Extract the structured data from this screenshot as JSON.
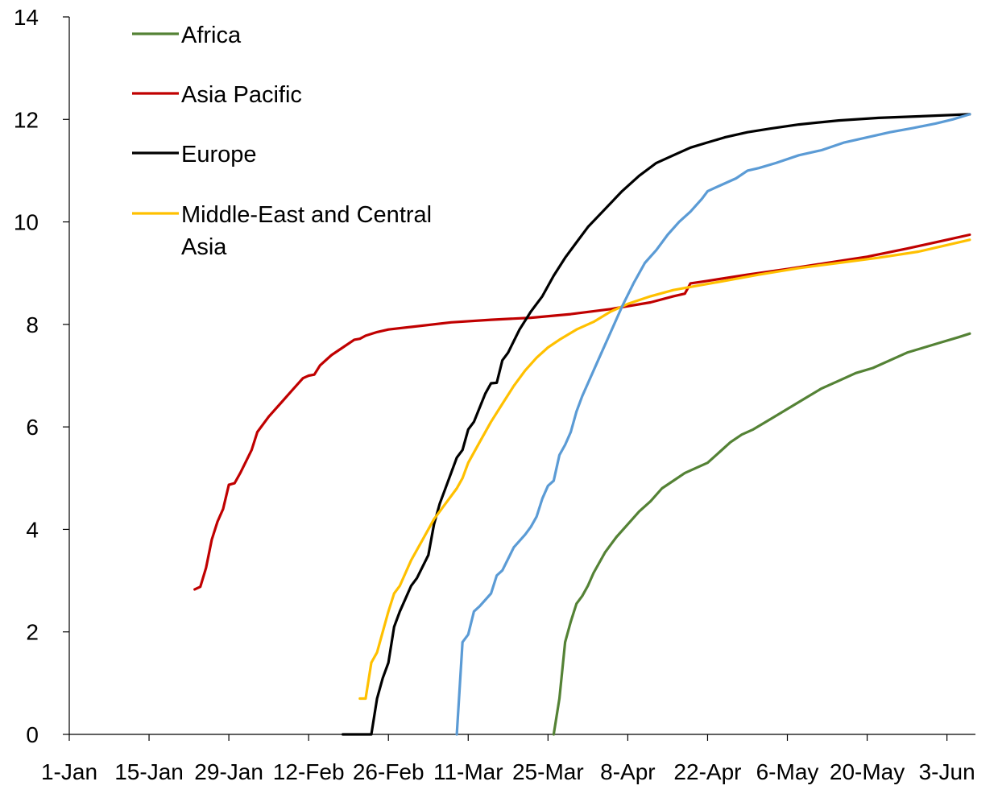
{
  "chart_data": {
    "type": "line",
    "title": "",
    "xlabel": "",
    "ylabel": "",
    "x_ticks": [
      "1-Jan",
      "15-Jan",
      "29-Jan",
      "12-Feb",
      "26-Feb",
      "11-Mar",
      "25-Mar",
      "8-Apr",
      "22-Apr",
      "6-May",
      "20-May",
      "3-Jun"
    ],
    "x_tick_dates": [
      "2020-01-01",
      "2020-01-15",
      "2020-01-29",
      "2020-02-12",
      "2020-02-26",
      "2020-03-11",
      "2020-03-25",
      "2020-04-08",
      "2020-04-22",
      "2020-05-06",
      "2020-05-20",
      "2020-06-03"
    ],
    "xlim": [
      "2020-01-01",
      "2020-06-08"
    ],
    "ylim": [
      0,
      14
    ],
    "y_ticks": [
      0,
      2,
      4,
      6,
      8,
      10,
      12,
      14
    ],
    "grid": false,
    "legend_position": "top-left",
    "series": [
      {
        "name": "Africa",
        "color": "#548235",
        "points": [
          [
            "2020-03-26",
            0
          ],
          [
            "2020-03-27",
            0.7
          ],
          [
            "2020-03-28",
            1.8
          ],
          [
            "2020-03-29",
            2.2
          ],
          [
            "2020-03-30",
            2.55
          ],
          [
            "2020-03-31",
            2.7
          ],
          [
            "2020-04-01",
            2.9
          ],
          [
            "2020-04-02",
            3.15
          ],
          [
            "2020-04-04",
            3.55
          ],
          [
            "2020-04-06",
            3.85
          ],
          [
            "2020-04-08",
            4.1
          ],
          [
            "2020-04-10",
            4.35
          ],
          [
            "2020-04-12",
            4.55
          ],
          [
            "2020-04-14",
            4.8
          ],
          [
            "2020-04-16",
            4.95
          ],
          [
            "2020-04-18",
            5.1
          ],
          [
            "2020-04-20",
            5.2
          ],
          [
            "2020-04-22",
            5.3
          ],
          [
            "2020-04-24",
            5.5
          ],
          [
            "2020-04-26",
            5.7
          ],
          [
            "2020-04-28",
            5.85
          ],
          [
            "2020-04-30",
            5.95
          ],
          [
            "2020-05-03",
            6.15
          ],
          [
            "2020-05-06",
            6.35
          ],
          [
            "2020-05-09",
            6.55
          ],
          [
            "2020-05-12",
            6.75
          ],
          [
            "2020-05-15",
            6.9
          ],
          [
            "2020-05-18",
            7.05
          ],
          [
            "2020-05-21",
            7.15
          ],
          [
            "2020-05-24",
            7.3
          ],
          [
            "2020-05-27",
            7.45
          ],
          [
            "2020-05-30",
            7.55
          ],
          [
            "2020-06-02",
            7.65
          ],
          [
            "2020-06-05",
            7.75
          ],
          [
            "2020-06-07",
            7.82
          ]
        ]
      },
      {
        "name": "Asia Pacific",
        "color": "#C00000",
        "points": [
          [
            "2020-01-23",
            2.83
          ],
          [
            "2020-01-24",
            2.88
          ],
          [
            "2020-01-25",
            3.25
          ],
          [
            "2020-01-26",
            3.8
          ],
          [
            "2020-01-27",
            4.15
          ],
          [
            "2020-01-28",
            4.4
          ],
          [
            "2020-01-29",
            4.87
          ],
          [
            "2020-01-30",
            4.9
          ],
          [
            "2020-01-31",
            5.1
          ],
          [
            "2020-02-02",
            5.55
          ],
          [
            "2020-02-03",
            5.9
          ],
          [
            "2020-02-05",
            6.2
          ],
          [
            "2020-02-07",
            6.45
          ],
          [
            "2020-02-09",
            6.7
          ],
          [
            "2020-02-11",
            6.95
          ],
          [
            "2020-02-12",
            7.0
          ],
          [
            "2020-02-13",
            7.02
          ],
          [
            "2020-02-14",
            7.2
          ],
          [
            "2020-02-16",
            7.4
          ],
          [
            "2020-02-18",
            7.55
          ],
          [
            "2020-02-20",
            7.7
          ],
          [
            "2020-02-21",
            7.72
          ],
          [
            "2020-02-22",
            7.78
          ],
          [
            "2020-02-24",
            7.85
          ],
          [
            "2020-02-26",
            7.9
          ],
          [
            "2020-03-01",
            7.95
          ],
          [
            "2020-03-08",
            8.04
          ],
          [
            "2020-03-15",
            8.09
          ],
          [
            "2020-03-22",
            8.13
          ],
          [
            "2020-03-29",
            8.2
          ],
          [
            "2020-04-05",
            8.3
          ],
          [
            "2020-04-12",
            8.43
          ],
          [
            "2020-04-16",
            8.55
          ],
          [
            "2020-04-18",
            8.6
          ],
          [
            "2020-04-19",
            8.8
          ],
          [
            "2020-04-22",
            8.85
          ],
          [
            "2020-04-29",
            8.97
          ],
          [
            "2020-05-06",
            9.08
          ],
          [
            "2020-05-13",
            9.2
          ],
          [
            "2020-05-20",
            9.32
          ],
          [
            "2020-05-27",
            9.48
          ],
          [
            "2020-06-03",
            9.65
          ],
          [
            "2020-06-07",
            9.75
          ]
        ]
      },
      {
        "name": "Europe",
        "color": "#000000",
        "points": [
          [
            "2020-02-18",
            0
          ],
          [
            "2020-02-23",
            0
          ],
          [
            "2020-02-24",
            0.7
          ],
          [
            "2020-02-25",
            1.1
          ],
          [
            "2020-02-26",
            1.4
          ],
          [
            "2020-02-27",
            2.1
          ],
          [
            "2020-02-28",
            2.4
          ],
          [
            "2020-03-01",
            2.9
          ],
          [
            "2020-03-02",
            3.05
          ],
          [
            "2020-03-04",
            3.5
          ],
          [
            "2020-03-05",
            4.1
          ],
          [
            "2020-03-06",
            4.5
          ],
          [
            "2020-03-07",
            4.8
          ],
          [
            "2020-03-09",
            5.4
          ],
          [
            "2020-03-10",
            5.55
          ],
          [
            "2020-03-11",
            5.95
          ],
          [
            "2020-03-12",
            6.1
          ],
          [
            "2020-03-14",
            6.65
          ],
          [
            "2020-03-15",
            6.85
          ],
          [
            "2020-03-16",
            6.86
          ],
          [
            "2020-03-17",
            7.3
          ],
          [
            "2020-03-18",
            7.45
          ],
          [
            "2020-03-20",
            7.9
          ],
          [
            "2020-03-22",
            8.25
          ],
          [
            "2020-03-24",
            8.55
          ],
          [
            "2020-03-26",
            8.95
          ],
          [
            "2020-03-28",
            9.3
          ],
          [
            "2020-03-30",
            9.6
          ],
          [
            "2020-04-01",
            9.9
          ],
          [
            "2020-04-04",
            10.25
          ],
          [
            "2020-04-07",
            10.6
          ],
          [
            "2020-04-10",
            10.9
          ],
          [
            "2020-04-13",
            11.15
          ],
          [
            "2020-04-16",
            11.3
          ],
          [
            "2020-04-19",
            11.45
          ],
          [
            "2020-04-22",
            11.55
          ],
          [
            "2020-04-25",
            11.65
          ],
          [
            "2020-04-29",
            11.75
          ],
          [
            "2020-05-03",
            11.82
          ],
          [
            "2020-05-08",
            11.9
          ],
          [
            "2020-05-15",
            11.98
          ],
          [
            "2020-05-22",
            12.03
          ],
          [
            "2020-05-29",
            12.06
          ],
          [
            "2020-06-07",
            12.1
          ]
        ]
      },
      {
        "name": "Middle-East and Central Asia",
        "color": "#FFC000",
        "points": [
          [
            "2020-02-21",
            0.7
          ],
          [
            "2020-02-22",
            0.7
          ],
          [
            "2020-02-23",
            1.4
          ],
          [
            "2020-02-24",
            1.6
          ],
          [
            "2020-02-26",
            2.4
          ],
          [
            "2020-02-27",
            2.75
          ],
          [
            "2020-02-28",
            2.9
          ],
          [
            "2020-03-01",
            3.4
          ],
          [
            "2020-03-03",
            3.8
          ],
          [
            "2020-03-05",
            4.2
          ],
          [
            "2020-03-07",
            4.5
          ],
          [
            "2020-03-09",
            4.8
          ],
          [
            "2020-03-10",
            5.0
          ],
          [
            "2020-03-11",
            5.3
          ],
          [
            "2020-03-13",
            5.7
          ],
          [
            "2020-03-15",
            6.1
          ],
          [
            "2020-03-17",
            6.45
          ],
          [
            "2020-03-19",
            6.8
          ],
          [
            "2020-03-21",
            7.1
          ],
          [
            "2020-03-23",
            7.35
          ],
          [
            "2020-03-25",
            7.55
          ],
          [
            "2020-03-27",
            7.7
          ],
          [
            "2020-03-30",
            7.9
          ],
          [
            "2020-04-02",
            8.05
          ],
          [
            "2020-04-05",
            8.25
          ],
          [
            "2020-04-08",
            8.4
          ],
          [
            "2020-04-12",
            8.55
          ],
          [
            "2020-04-16",
            8.67
          ],
          [
            "2020-04-20",
            8.75
          ],
          [
            "2020-04-25",
            8.85
          ],
          [
            "2020-05-01",
            8.97
          ],
          [
            "2020-05-08",
            9.1
          ],
          [
            "2020-05-15",
            9.2
          ],
          [
            "2020-05-22",
            9.3
          ],
          [
            "2020-05-29",
            9.42
          ],
          [
            "2020-06-07",
            9.65
          ]
        ]
      },
      {
        "name": "",
        "color": "#5B9BD5",
        "points": [
          [
            "2020-03-09",
            0
          ],
          [
            "2020-03-10",
            1.8
          ],
          [
            "2020-03-11",
            1.95
          ],
          [
            "2020-03-12",
            2.4
          ],
          [
            "2020-03-13",
            2.5
          ],
          [
            "2020-03-15",
            2.75
          ],
          [
            "2020-03-16",
            3.1
          ],
          [
            "2020-03-17",
            3.2
          ],
          [
            "2020-03-19",
            3.65
          ],
          [
            "2020-03-21",
            3.9
          ],
          [
            "2020-03-22",
            4.05
          ],
          [
            "2020-03-23",
            4.25
          ],
          [
            "2020-03-24",
            4.6
          ],
          [
            "2020-03-25",
            4.85
          ],
          [
            "2020-03-26",
            4.95
          ],
          [
            "2020-03-27",
            5.45
          ],
          [
            "2020-03-28",
            5.65
          ],
          [
            "2020-03-29",
            5.9
          ],
          [
            "2020-03-30",
            6.3
          ],
          [
            "2020-03-31",
            6.6
          ],
          [
            "2020-04-01",
            6.85
          ],
          [
            "2020-04-03",
            7.35
          ],
          [
            "2020-04-05",
            7.85
          ],
          [
            "2020-04-07",
            8.35
          ],
          [
            "2020-04-09",
            8.8
          ],
          [
            "2020-04-11",
            9.2
          ],
          [
            "2020-04-13",
            9.45
          ],
          [
            "2020-04-15",
            9.75
          ],
          [
            "2020-04-17",
            10.0
          ],
          [
            "2020-04-19",
            10.2
          ],
          [
            "2020-04-21",
            10.45
          ],
          [
            "2020-04-22",
            10.6
          ],
          [
            "2020-04-24",
            10.7
          ],
          [
            "2020-04-27",
            10.85
          ],
          [
            "2020-04-29",
            11.0
          ],
          [
            "2020-05-01",
            11.05
          ],
          [
            "2020-05-04",
            11.15
          ],
          [
            "2020-05-08",
            11.3
          ],
          [
            "2020-05-12",
            11.4
          ],
          [
            "2020-05-16",
            11.55
          ],
          [
            "2020-05-20",
            11.65
          ],
          [
            "2020-05-24",
            11.75
          ],
          [
            "2020-05-28",
            11.83
          ],
          [
            "2020-06-01",
            11.92
          ],
          [
            "2020-06-04",
            12.0
          ],
          [
            "2020-06-07",
            12.1
          ]
        ]
      }
    ]
  }
}
